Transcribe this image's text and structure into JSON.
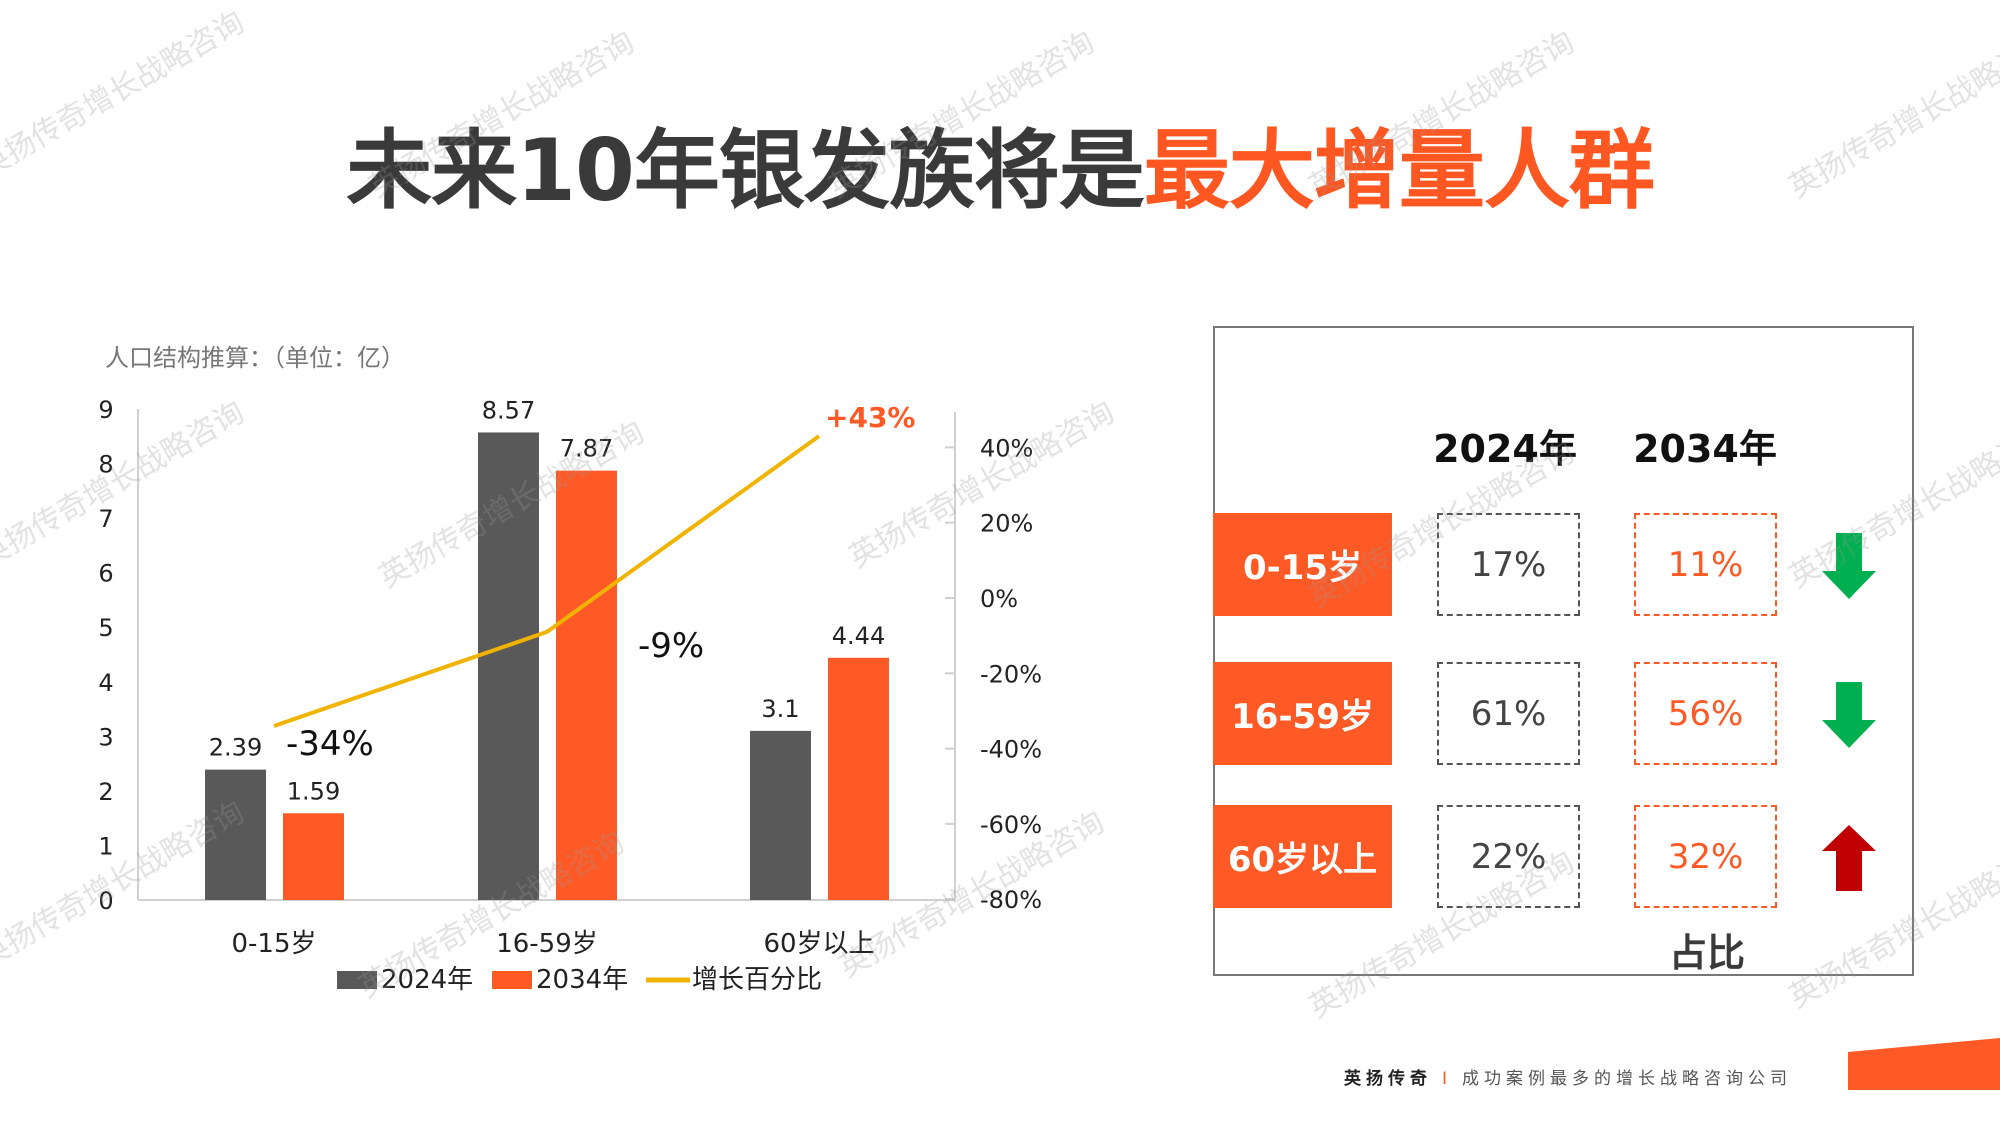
{
  "title": {
    "part1": "未来10年银发族将是",
    "part2": "最大增量人群"
  },
  "chart_data": {
    "type": "bar+line",
    "subtitle": "人口结构推算：（单位：亿）",
    "categories": [
      "0-15岁",
      "16-59岁",
      "60岁以上"
    ],
    "series": [
      {
        "name": "2024年",
        "type": "bar",
        "color": "#595959",
        "values": [
          2.39,
          8.57,
          3.1
        ]
      },
      {
        "name": "2034年",
        "type": "bar",
        "color": "#ff5a26",
        "values": [
          1.59,
          7.87,
          4.44
        ]
      },
      {
        "name": "增长百分比",
        "type": "line",
        "axis": "right",
        "color": "#f0b400",
        "values": [
          -34,
          -9,
          43
        ],
        "labels": [
          "-34%",
          "-9%",
          "+43%"
        ]
      }
    ],
    "bar_labels": [
      [
        "2.39",
        "8.57",
        "3.1"
      ],
      [
        "1.59",
        "7.87",
        "4.44"
      ]
    ],
    "ylim": [
      0,
      9
    ],
    "yticks": [
      "0",
      "1",
      "2",
      "3",
      "4",
      "5",
      "6",
      "7",
      "8",
      "9"
    ],
    "y2lim": [
      -80,
      40
    ],
    "y2ticks": [
      "-80%",
      "-60%",
      "-40%",
      "-20%",
      "0%",
      "20%",
      "40%"
    ],
    "legend": "bottom",
    "grid": false
  },
  "table": {
    "headers": [
      "2024年",
      "2034年"
    ],
    "rows": [
      {
        "label": "0-15岁",
        "v2024": "17%",
        "v2034": "11%",
        "trend": "down"
      },
      {
        "label": "16-59岁",
        "v2024": "61%",
        "v2034": "56%",
        "trend": "down"
      },
      {
        "label": "60岁以上",
        "v2024": "22%",
        "v2034": "32%",
        "trend": "up"
      }
    ],
    "caption": "占比",
    "colors": {
      "down": "#00b050",
      "up": "#c00000",
      "accent": "#ff5a26"
    }
  },
  "footer": {
    "brand": "英扬传奇",
    "separator": "I",
    "slogan": "成功案例最多的增长战略咨询公司"
  },
  "watermark": "英扬传奇增长战略咨询"
}
